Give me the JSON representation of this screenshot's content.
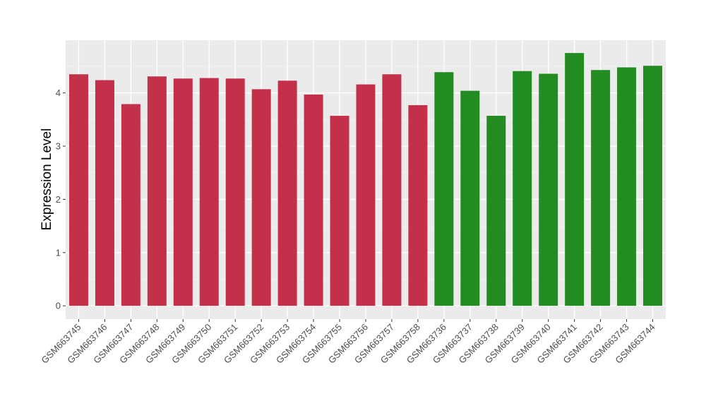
{
  "chart_data": {
    "type": "bar",
    "title": "",
    "xlabel": "",
    "ylabel": "Expression Level",
    "ylim": [
      -0.25,
      4.99
    ],
    "yticks": [
      0,
      1,
      2,
      3,
      4
    ],
    "grid": true,
    "categories": [
      "GSM663745",
      "GSM663746",
      "GSM663747",
      "GSM663748",
      "GSM663749",
      "GSM663750",
      "GSM663751",
      "GSM663752",
      "GSM663753",
      "GSM663754",
      "GSM663755",
      "GSM663756",
      "GSM663757",
      "GSM663758",
      "GSM663736",
      "GSM663737",
      "GSM663738",
      "GSM663739",
      "GSM663740",
      "GSM663741",
      "GSM663742",
      "GSM663743",
      "GSM663744"
    ],
    "values": [
      4.35,
      4.24,
      3.79,
      4.31,
      4.27,
      4.28,
      4.27,
      4.07,
      4.23,
      3.97,
      3.57,
      4.16,
      4.35,
      3.77,
      4.39,
      4.04,
      3.57,
      4.41,
      4.36,
      4.75,
      4.43,
      4.48,
      4.51
    ],
    "groups": [
      "red",
      "red",
      "red",
      "red",
      "red",
      "red",
      "red",
      "red",
      "red",
      "red",
      "red",
      "red",
      "red",
      "red",
      "green",
      "green",
      "green",
      "green",
      "green",
      "green",
      "green",
      "green",
      "green"
    ],
    "colors": {
      "red": "#c3304a",
      "green": "#228b22"
    }
  }
}
